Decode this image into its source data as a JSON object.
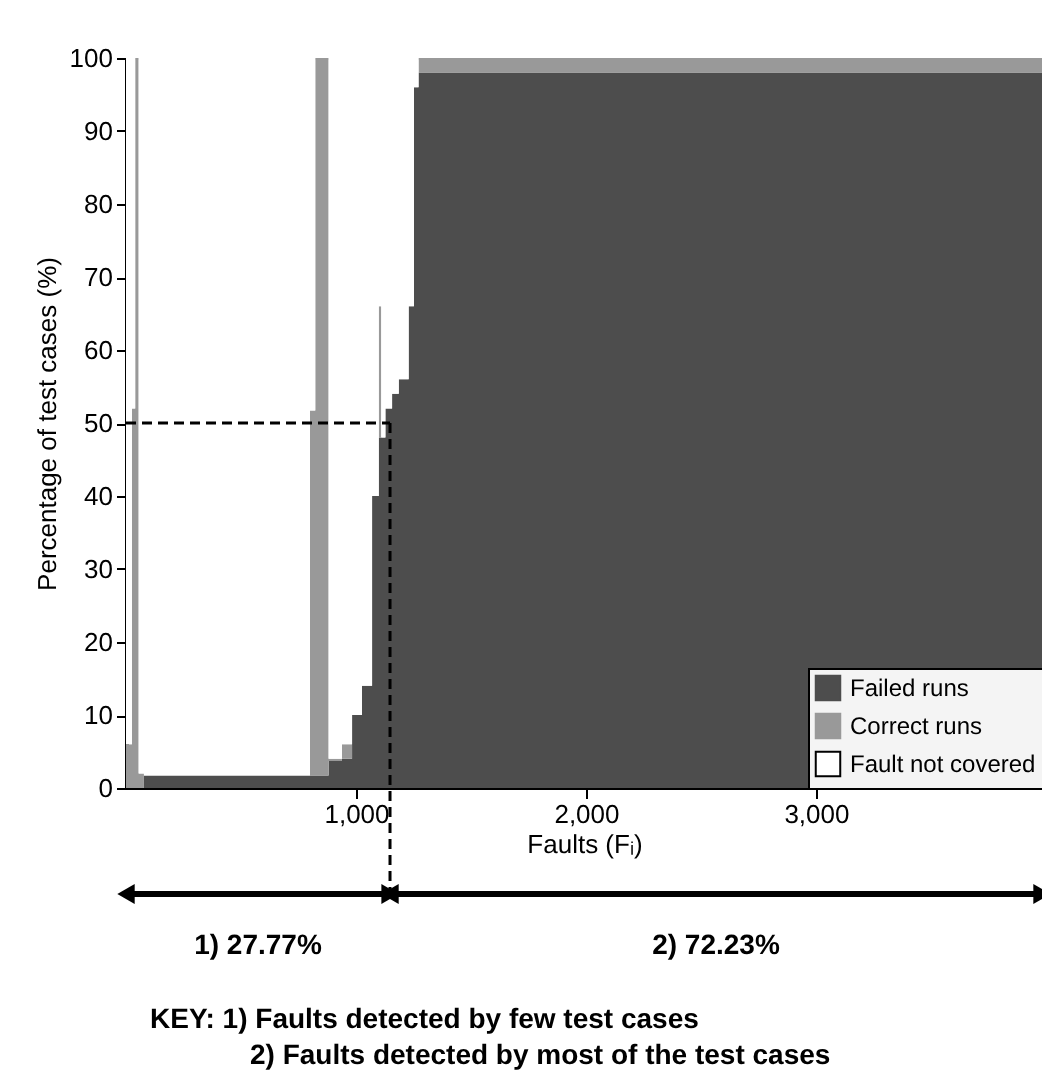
{
  "chart_data": {
    "type": "area",
    "xlabel": "Faults  (Fᵢ)",
    "ylabel": "Percentage of test cases (%)",
    "x": [
      0,
      26,
      40,
      55,
      78,
      800,
      823,
      881,
      939,
      983,
      1026,
      1070,
      1099,
      1110,
      1128,
      1157,
      1186,
      1229,
      1252,
      1272,
      3983
    ],
    "series": [
      {
        "name": "Failed runs",
        "color": "#4d4d4d",
        "values": [
          0,
          0,
          0,
          0,
          1.7,
          1.7,
          1.7,
          3.7,
          4,
          10,
          14,
          40,
          48,
          48,
          52,
          54,
          56,
          66,
          96,
          98,
          98
        ]
      },
      {
        "name": "Correct runs",
        "color": "#999999",
        "values": [
          6,
          52,
          100,
          2,
          0,
          50,
          98.3,
          0.3,
          2,
          0,
          0,
          0,
          18,
          0,
          0,
          0,
          0,
          0,
          0,
          2,
          2
        ]
      },
      {
        "name": "Fault not covered",
        "color": "#ffffff",
        "values": [
          94,
          48,
          0,
          98,
          98.3,
          48.3,
          0,
          96,
          94,
          90,
          86,
          60,
          34,
          52,
          48,
          46,
          44,
          34,
          4,
          0,
          0
        ]
      }
    ],
    "stacked": true,
    "xlim": [
      0,
      3983
    ],
    "ylim": [
      0,
      100
    ],
    "xticks": [
      {
        "value": 1000,
        "label": "1,000"
      },
      {
        "value": 2000,
        "label": "2,000"
      },
      {
        "value": 3000,
        "label": "3,000"
      }
    ],
    "yticks": [
      0,
      10,
      20,
      30,
      40,
      50,
      60,
      70,
      80,
      90,
      100
    ],
    "ref_lines": [
      {
        "axis": "y",
        "value": 50,
        "line_style": "dashed",
        "color": "#000000"
      },
      {
        "axis": "x",
        "value": 1148,
        "line_style": "dashed",
        "color": "#000000"
      }
    ],
    "annotations": [
      "1) 27.77%",
      "2) 72.23%",
      "KEY:   1) Faults detected by few test cases",
      "2) Faults detected by most of the test cases"
    ],
    "grid": false,
    "legend": "bottom right"
  }
}
